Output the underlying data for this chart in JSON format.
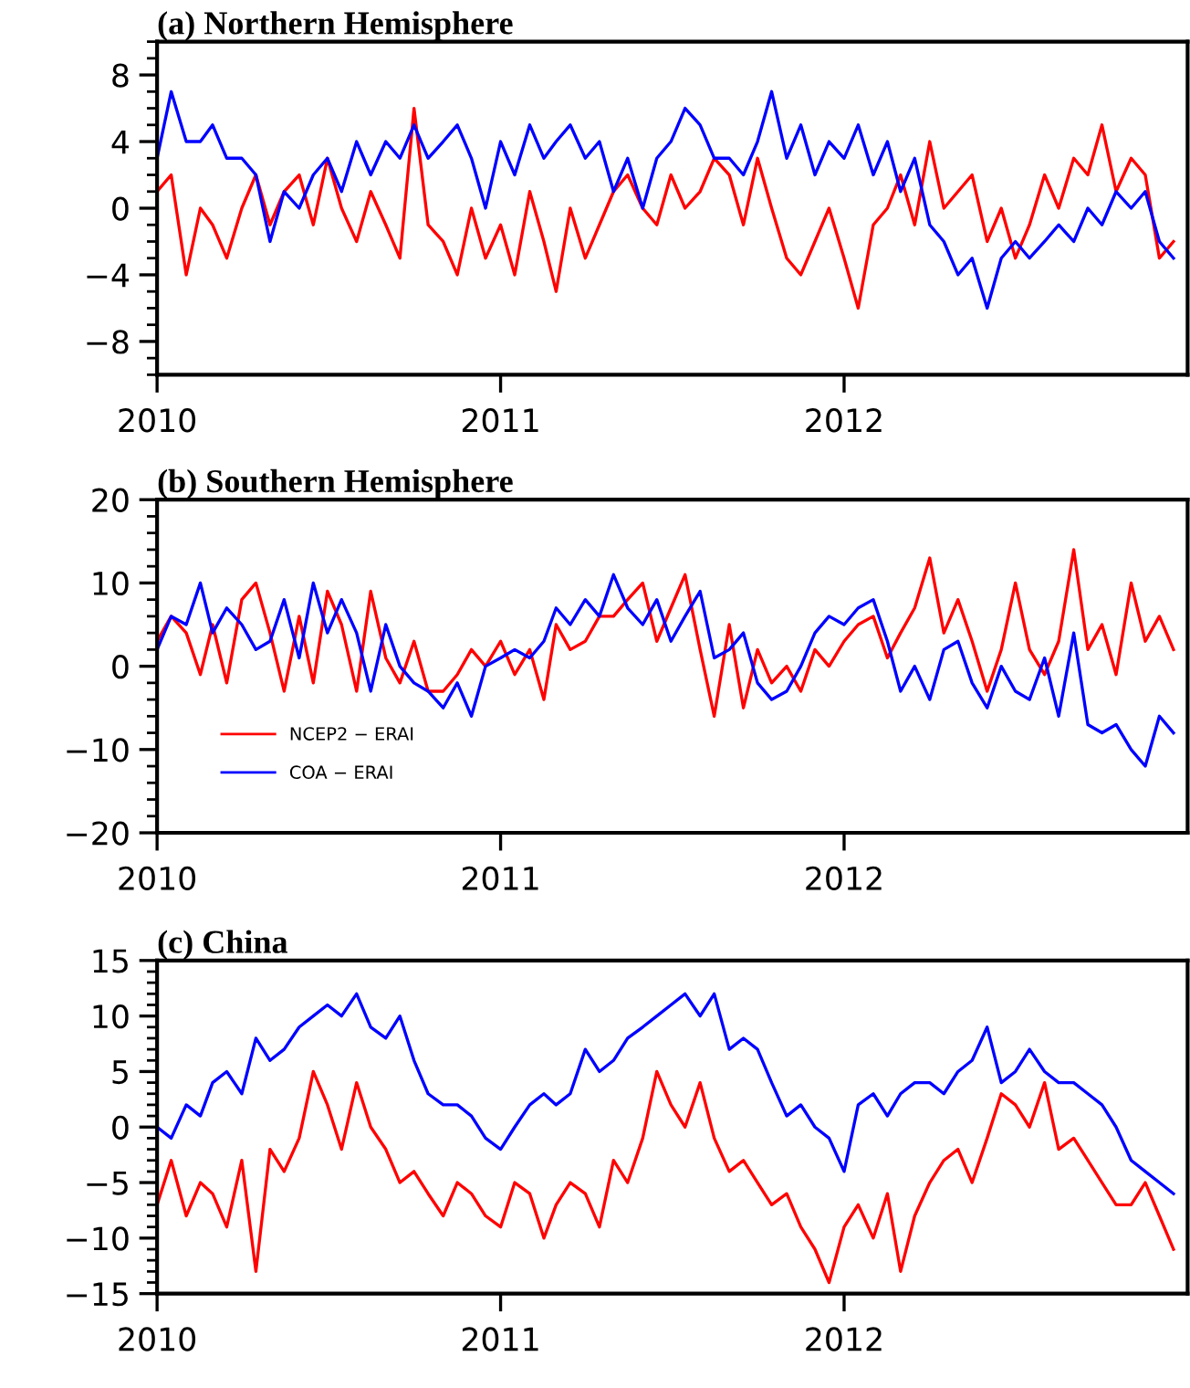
{
  "chart_data": [
    {
      "type": "line",
      "title": "(a) Northern Hemisphere",
      "x": [
        "2010-01-01",
        "2010-01-16",
        "2010-02-01",
        "2010-02-16",
        "2010-03-01",
        "2010-03-16",
        "2010-04-01",
        "2010-04-16",
        "2010-05-01",
        "2010-05-16",
        "2010-06-01",
        "2010-06-16",
        "2010-07-01",
        "2010-07-16",
        "2010-08-01",
        "2010-08-16",
        "2010-09-01",
        "2010-09-16",
        "2010-10-01",
        "2010-10-16",
        "2010-11-01",
        "2010-11-16",
        "2010-12-01",
        "2010-12-16",
        "2011-01-01",
        "2011-01-16",
        "2011-02-01",
        "2011-02-16",
        "2011-03-01",
        "2011-03-16",
        "2011-04-01",
        "2011-04-16",
        "2011-05-01",
        "2011-05-16",
        "2011-06-01",
        "2011-06-16",
        "2011-07-01",
        "2011-07-16",
        "2011-08-01",
        "2011-08-16",
        "2011-09-01",
        "2011-09-16",
        "2011-10-01",
        "2011-10-16",
        "2011-11-01",
        "2011-11-16",
        "2011-12-01",
        "2011-12-16",
        "2012-01-01",
        "2012-01-16",
        "2012-02-01",
        "2012-02-16",
        "2012-03-01",
        "2012-03-16",
        "2012-04-01",
        "2012-04-16",
        "2012-05-01",
        "2012-05-16",
        "2012-06-01",
        "2012-06-16",
        "2012-07-01",
        "2012-07-16",
        "2012-08-01",
        "2012-08-16",
        "2012-09-01",
        "2012-09-16",
        "2012-10-01",
        "2012-10-16",
        "2012-11-01",
        "2012-11-16",
        "2012-12-01",
        "2012-12-16"
      ],
      "xlim": [
        "2010-01-01",
        "2012-12-31"
      ],
      "xticks": [
        {
          "value": "2010-01-01",
          "label": "2010"
        },
        {
          "value": "2011-01-01",
          "label": "2011"
        },
        {
          "value": "2012-01-01",
          "label": "2012"
        }
      ],
      "ylim": [
        -10,
        10
      ],
      "yticks": [
        -8,
        -4,
        0,
        4,
        8
      ],
      "grid": false,
      "legend": false,
      "series": [
        {
          "color": "#ff0000",
          "values": [
            1,
            2,
            -4,
            0,
            -1,
            -3,
            0,
            2,
            -1,
            1,
            2,
            -1,
            3,
            0,
            -2,
            1,
            -1,
            -3,
            6,
            -1,
            -2,
            -4,
            0,
            -3,
            -1,
            -4,
            1,
            -2,
            -5,
            0,
            -3,
            -1,
            1,
            2,
            0,
            -1,
            2,
            0,
            1,
            3,
            2,
            -1,
            3,
            0,
            -3,
            -4,
            -2,
            0,
            -3,
            -6,
            -1,
            0,
            2,
            -1,
            4,
            0,
            1,
            2,
            -2,
            0,
            -3,
            -1,
            2,
            0,
            3,
            2,
            5,
            1,
            3,
            2,
            -3,
            -2
          ]
        },
        {
          "color": "#0000ff",
          "values": [
            3,
            7,
            4,
            4,
            5,
            3,
            3,
            2,
            -2,
            1,
            0,
            2,
            3,
            1,
            4,
            2,
            4,
            3,
            5,
            3,
            4,
            5,
            3,
            0,
            4,
            2,
            5,
            3,
            4,
            5,
            3,
            4,
            1,
            3,
            0,
            3,
            4,
            6,
            5,
            3,
            3,
            2,
            4,
            7,
            3,
            5,
            2,
            4,
            3,
            5,
            2,
            4,
            1,
            3,
            -1,
            -2,
            -4,
            -3,
            -6,
            -3,
            -2,
            -3,
            -2,
            -1,
            -2,
            0,
            -1,
            1,
            0,
            1,
            -2,
            -3
          ]
        }
      ]
    },
    {
      "type": "line",
      "title": "(b) Southern Hemisphere",
      "x": [
        "2010-01-01",
        "2010-01-16",
        "2010-02-01",
        "2010-02-16",
        "2010-03-01",
        "2010-03-16",
        "2010-04-01",
        "2010-04-16",
        "2010-05-01",
        "2010-05-16",
        "2010-06-01",
        "2010-06-16",
        "2010-07-01",
        "2010-07-16",
        "2010-08-01",
        "2010-08-16",
        "2010-09-01",
        "2010-09-16",
        "2010-10-01",
        "2010-10-16",
        "2010-11-01",
        "2010-11-16",
        "2010-12-01",
        "2010-12-16",
        "2011-01-01",
        "2011-01-16",
        "2011-02-01",
        "2011-02-16",
        "2011-03-01",
        "2011-03-16",
        "2011-04-01",
        "2011-04-16",
        "2011-05-01",
        "2011-05-16",
        "2011-06-01",
        "2011-06-16",
        "2011-07-01",
        "2011-07-16",
        "2011-08-01",
        "2011-08-16",
        "2011-09-01",
        "2011-09-16",
        "2011-10-01",
        "2011-10-16",
        "2011-11-01",
        "2011-11-16",
        "2011-12-01",
        "2011-12-16",
        "2012-01-01",
        "2012-01-16",
        "2012-02-01",
        "2012-02-16",
        "2012-03-01",
        "2012-03-16",
        "2012-04-01",
        "2012-04-16",
        "2012-05-01",
        "2012-05-16",
        "2012-06-01",
        "2012-06-16",
        "2012-07-01",
        "2012-07-16",
        "2012-08-01",
        "2012-08-16",
        "2012-09-01",
        "2012-09-16",
        "2012-10-01",
        "2012-10-16",
        "2012-11-01",
        "2012-11-16",
        "2012-12-01",
        "2012-12-16"
      ],
      "xlim": [
        "2010-01-01",
        "2012-12-31"
      ],
      "xticks": [
        {
          "value": "2010-01-01",
          "label": "2010"
        },
        {
          "value": "2011-01-01",
          "label": "2011"
        },
        {
          "value": "2012-01-01",
          "label": "2012"
        }
      ],
      "ylim": [
        -20,
        20
      ],
      "yticks": [
        -20,
        -10,
        0,
        10,
        20
      ],
      "grid": false,
      "legend": "lower left",
      "series": [
        {
          "name": "NCEP2 − ERAI",
          "color": "#ff0000",
          "values": [
            3,
            6,
            4,
            -1,
            5,
            -2,
            8,
            10,
            4,
            -3,
            6,
            -2,
            9,
            5,
            -3,
            9,
            1,
            -2,
            3,
            -3,
            -3,
            -1,
            2,
            0,
            3,
            -1,
            2,
            -4,
            5,
            2,
            3,
            6,
            6,
            8,
            10,
            3,
            7,
            11,
            2,
            -6,
            5,
            -5,
            2,
            -2,
            0,
            -3,
            2,
            0,
            3,
            5,
            6,
            1,
            4,
            7,
            13,
            4,
            8,
            3,
            -3,
            2,
            10,
            2,
            -1,
            3,
            14,
            2,
            5,
            -1,
            10,
            3,
            6,
            2
          ]
        },
        {
          "name": "COA − ERAI",
          "color": "#0000ff",
          "values": [
            2,
            6,
            5,
            10,
            4,
            7,
            5,
            2,
            3,
            8,
            1,
            10,
            4,
            8,
            4,
            -3,
            5,
            0,
            -2,
            -3,
            -5,
            -2,
            -6,
            0,
            1,
            2,
            1,
            3,
            7,
            5,
            8,
            6,
            11,
            7,
            5,
            8,
            3,
            6,
            9,
            1,
            2,
            4,
            -2,
            -4,
            -3,
            0,
            4,
            6,
            5,
            7,
            8,
            3,
            -3,
            0,
            -4,
            2,
            3,
            -2,
            -5,
            0,
            -3,
            -4,
            1,
            -6,
            4,
            -7,
            -8,
            -7,
            -10,
            -12,
            -6,
            -8
          ]
        }
      ]
    },
    {
      "type": "line",
      "title": "(c) China",
      "x": [
        "2010-01-01",
        "2010-01-16",
        "2010-02-01",
        "2010-02-16",
        "2010-03-01",
        "2010-03-16",
        "2010-04-01",
        "2010-04-16",
        "2010-05-01",
        "2010-05-16",
        "2010-06-01",
        "2010-06-16",
        "2010-07-01",
        "2010-07-16",
        "2010-08-01",
        "2010-08-16",
        "2010-09-01",
        "2010-09-16",
        "2010-10-01",
        "2010-10-16",
        "2010-11-01",
        "2010-11-16",
        "2010-12-01",
        "2010-12-16",
        "2011-01-01",
        "2011-01-16",
        "2011-02-01",
        "2011-02-16",
        "2011-03-01",
        "2011-03-16",
        "2011-04-01",
        "2011-04-16",
        "2011-05-01",
        "2011-05-16",
        "2011-06-01",
        "2011-06-16",
        "2011-07-01",
        "2011-07-16",
        "2011-08-01",
        "2011-08-16",
        "2011-09-01",
        "2011-09-16",
        "2011-10-01",
        "2011-10-16",
        "2011-11-01",
        "2011-11-16",
        "2011-12-01",
        "2011-12-16",
        "2012-01-01",
        "2012-01-16",
        "2012-02-01",
        "2012-02-16",
        "2012-03-01",
        "2012-03-16",
        "2012-04-01",
        "2012-04-16",
        "2012-05-01",
        "2012-05-16",
        "2012-06-01",
        "2012-06-16",
        "2012-07-01",
        "2012-07-16",
        "2012-08-01",
        "2012-08-16",
        "2012-09-01",
        "2012-09-16",
        "2012-10-01",
        "2012-10-16",
        "2012-11-01",
        "2012-11-16",
        "2012-12-01",
        "2012-12-16"
      ],
      "xlim": [
        "2010-01-01",
        "2012-12-31"
      ],
      "xticks": [
        {
          "value": "2010-01-01",
          "label": "2010"
        },
        {
          "value": "2011-01-01",
          "label": "2011"
        },
        {
          "value": "2012-01-01",
          "label": "2012"
        }
      ],
      "ylim": [
        -15,
        15
      ],
      "yticks": [
        -15,
        -10,
        -5,
        0,
        5,
        10,
        15
      ],
      "grid": false,
      "legend": false,
      "series": [
        {
          "color": "#ff0000",
          "values": [
            -7,
            -3,
            -8,
            -5,
            -6,
            -9,
            -3,
            -13,
            -2,
            -4,
            -1,
            5,
            2,
            -2,
            4,
            0,
            -2,
            -5,
            -4,
            -6,
            -8,
            -5,
            -6,
            -8,
            -9,
            -5,
            -6,
            -10,
            -7,
            -5,
            -6,
            -9,
            -3,
            -5,
            -1,
            5,
            2,
            0,
            4,
            -1,
            -4,
            -3,
            -5,
            -7,
            -6,
            -9,
            -11,
            -14,
            -9,
            -7,
            -10,
            -6,
            -13,
            -8,
            -5,
            -3,
            -2,
            -5,
            -1,
            3,
            2,
            0,
            4,
            -2,
            -1,
            -3,
            -5,
            -7,
            -7,
            -5,
            -8,
            -11
          ]
        },
        {
          "color": "#0000ff",
          "values": [
            0,
            -1,
            2,
            1,
            4,
            5,
            3,
            8,
            6,
            7,
            9,
            10,
            11,
            10,
            12,
            9,
            8,
            10,
            6,
            3,
            2,
            2,
            1,
            -1,
            -2,
            0,
            2,
            3,
            2,
            3,
            7,
            5,
            6,
            8,
            9,
            10,
            11,
            12,
            10,
            12,
            7,
            8,
            7,
            4,
            1,
            2,
            0,
            -1,
            -4,
            2,
            3,
            1,
            3,
            4,
            4,
            3,
            5,
            6,
            9,
            4,
            5,
            7,
            5,
            4,
            4,
            3,
            2,
            0,
            -3,
            -4,
            -5,
            -6
          ]
        }
      ]
    }
  ]
}
